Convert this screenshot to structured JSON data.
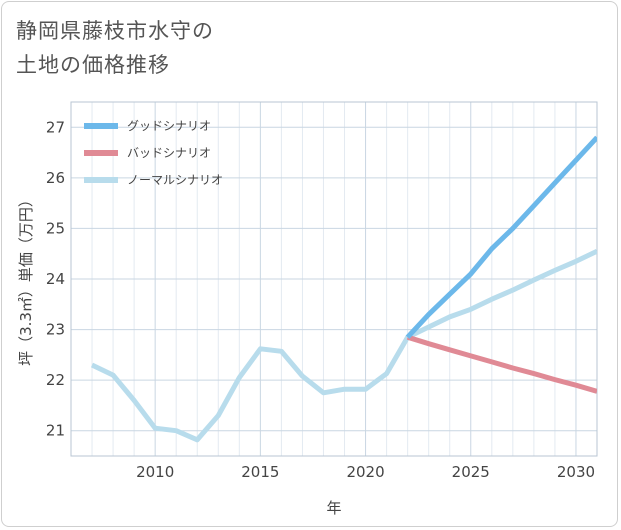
{
  "title": {
    "line1": "静岡県藤枝市水守の",
    "line2": "土地の価格推移"
  },
  "chart_data": {
    "type": "line",
    "xlabel": "年",
    "ylabel": "坪（3.3㎡）単価（万円）",
    "xlim": [
      2006,
      2031
    ],
    "ylim": [
      20.5,
      27.5
    ],
    "xticks": [
      2010,
      2015,
      2020,
      2025,
      2030
    ],
    "yticks": [
      21,
      22,
      23,
      24,
      25,
      26,
      27
    ],
    "grid": true,
    "legend_position": "top-left",
    "series": [
      {
        "name": "グッドシナリオ",
        "color": "#6cb8ea",
        "x": [
          2022,
          2023,
          2024,
          2025,
          2026,
          2027,
          2028,
          2029,
          2030,
          2031
        ],
        "y": [
          22.85,
          23.3,
          23.7,
          24.1,
          24.6,
          25.0,
          25.45,
          25.9,
          26.35,
          26.8
        ]
      },
      {
        "name": "バッドシナリオ",
        "color": "#e08a95",
        "x": [
          2022,
          2023,
          2024,
          2025,
          2026,
          2027,
          2028,
          2029,
          2030,
          2031
        ],
        "y": [
          22.85,
          22.72,
          22.6,
          22.48,
          22.36,
          22.24,
          22.13,
          22.01,
          21.9,
          21.78
        ]
      },
      {
        "name": "ノーマルシナリオ",
        "color": "#b8dcec",
        "x": [
          2007,
          2008,
          2009,
          2010,
          2011,
          2012,
          2013,
          2014,
          2015,
          2016,
          2017,
          2018,
          2019,
          2020,
          2021,
          2022,
          2023,
          2024,
          2025,
          2026,
          2027,
          2028,
          2029,
          2030,
          2031
        ],
        "y": [
          22.3,
          22.1,
          21.6,
          21.05,
          21.0,
          20.82,
          21.3,
          22.05,
          22.62,
          22.57,
          22.08,
          21.75,
          21.82,
          21.82,
          22.13,
          22.85,
          23.05,
          23.25,
          23.4,
          23.6,
          23.78,
          23.98,
          24.17,
          24.35,
          24.55
        ]
      }
    ]
  }
}
